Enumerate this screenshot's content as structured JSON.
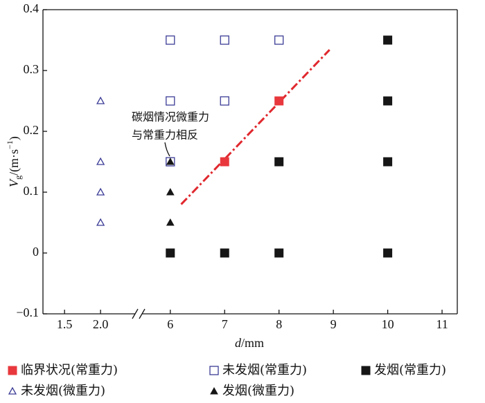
{
  "chart_data": {
    "type": "scatter",
    "xlabel_parts": [
      "d",
      "/mm"
    ],
    "ylabel_parts": [
      "V",
      "g",
      "/(m·s",
      "−1",
      ")"
    ],
    "x_segments": [
      {
        "xlim": [
          1.2,
          2.48
        ],
        "xticks": [
          1.5,
          {
            "value": 2,
            "label": "2.0"
          }
        ]
      },
      {
        "xlim": [
          5.48,
          11.28
        ],
        "xticks": [
          6,
          7,
          8,
          9,
          10,
          11
        ]
      }
    ],
    "ylim": [
      -0.1,
      0.4
    ],
    "yticks": [
      {
        "value": -0.1,
        "label": "−0.1"
      },
      0,
      0.1,
      0.2,
      0.3,
      0.4
    ],
    "series": [
      {
        "name": "临界状况(常重力)",
        "color": "#e8383d",
        "marker": "square",
        "filled": true,
        "x": [
          7,
          8
        ],
        "values": [
          0.15,
          0.25
        ]
      },
      {
        "name": "未发烟(常重力)",
        "color": "#3b3b96",
        "marker": "square",
        "filled": false,
        "x": [
          6,
          7,
          8,
          6,
          7,
          6
        ],
        "values": [
          0.35,
          0.35,
          0.35,
          0.25,
          0.25,
          0.15
        ]
      },
      {
        "name": "发烟(常重力)",
        "color": "#161616",
        "marker": "square",
        "filled": true,
        "x": [
          10,
          10,
          8,
          10,
          6,
          7,
          8,
          10
        ],
        "values": [
          0.35,
          0.25,
          0.15,
          0.15,
          0,
          0,
          0,
          0
        ]
      },
      {
        "name": "未发烟(微重力)",
        "color": "#3b3b96",
        "marker": "triangle",
        "filled": false,
        "x": [
          2,
          2,
          2,
          2
        ],
        "values": [
          0.25,
          0.15,
          0.1,
          0.05
        ]
      },
      {
        "name": "发烟(微重力)",
        "color": "#161616",
        "marker": "triangle",
        "filled": true,
        "x": [
          6,
          6,
          6
        ],
        "values": [
          0.15,
          0.1,
          0.05
        ]
      }
    ],
    "trend_line": {
      "color": "#e0282e",
      "x": [
        6.2,
        8.93
      ],
      "values": [
        0.08,
        0.334
      ]
    },
    "annotation": [
      "碳烟情况微重力",
      "与常重力相反"
    ]
  }
}
